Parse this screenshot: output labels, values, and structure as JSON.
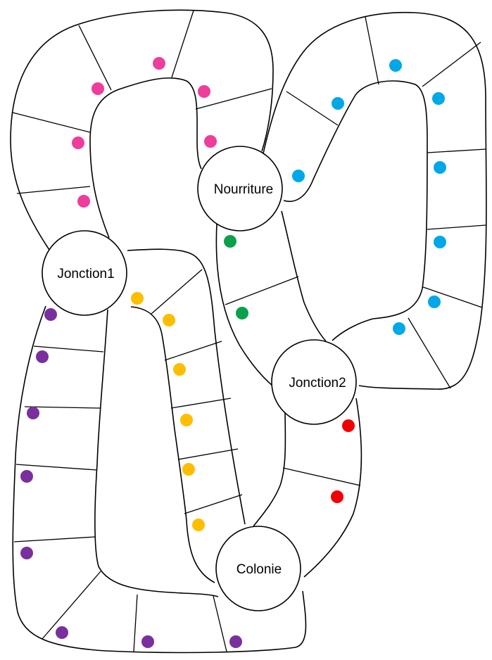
{
  "nodes": {
    "nourriture": {
      "label": "Nourriture"
    },
    "jonction1": {
      "label": "Jonction1"
    },
    "jonction2": {
      "label": "Jonction2"
    },
    "colonie": {
      "label": "Colonie"
    }
  },
  "paths": [
    {
      "id": "jonction1-nourriture",
      "color": "#ee3d9b"
    },
    {
      "id": "nourriture-jonction2",
      "color": "#00a8e8"
    },
    {
      "id": "nourriture-jonction2-short",
      "color": "#0aa14b"
    },
    {
      "id": "jonction1-colonie-inner",
      "color": "#ffbd00"
    },
    {
      "id": "jonction1-colonie-outer",
      "color": "#7a2f9e"
    },
    {
      "id": "jonction2-colonie",
      "color": "#f00000"
    }
  ]
}
